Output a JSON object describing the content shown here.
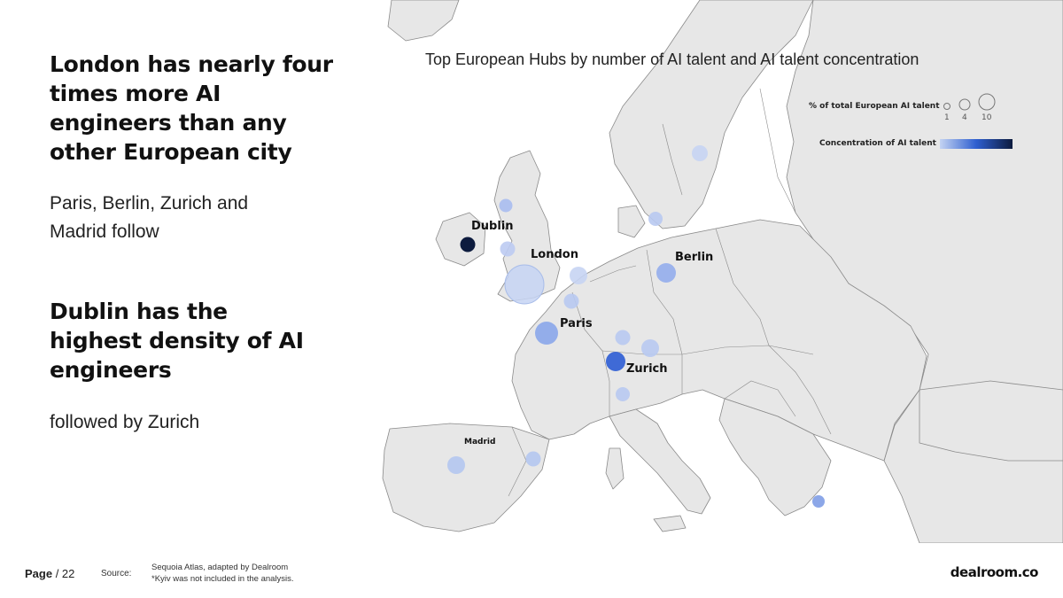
{
  "left": {
    "headline_1": "London has nearly four times more AI engineers than any other European city",
    "subtext_1": "Paris, Berlin, Zurich and Madrid follow",
    "headline_2": "Dublin has the highest density of AI engineers",
    "subtext_2": "followed by Zurich"
  },
  "map": {
    "title": "Top European Hubs by number of AI talent and AI talent concentration",
    "legend": {
      "size_label": "% of total European AI talent",
      "size_ticks": [
        "1",
        "4",
        "10"
      ],
      "color_label": "Concentration of AI talent",
      "color_scale": [
        "#c4d3f2",
        "#2e5fd0",
        "#0d1b3e"
      ]
    },
    "colors": {
      "land": "#e7e7e7",
      "border": "#8a8a8a",
      "sea": "#ffffff"
    },
    "cities": [
      {
        "name": "London",
        "color": "#c6d4f3"
      },
      {
        "name": "Dublin",
        "color": "#0d1b3e"
      },
      {
        "name": "Paris",
        "color": "#8aa6ea"
      },
      {
        "name": "Berlin",
        "color": "#93adec"
      },
      {
        "name": "Zurich",
        "color": "#3f6ad6"
      },
      {
        "name": "Madrid",
        "color": "#b4c7f0"
      }
    ]
  },
  "footer": {
    "page_label": "Page",
    "page_total": "/ 22",
    "source_label": "Source:",
    "source_line_1": "Sequoia Atlas, adapted by Dealroom",
    "source_line_2": "*Kyiv was not included in the analysis.",
    "brand": "dealroom.co"
  }
}
